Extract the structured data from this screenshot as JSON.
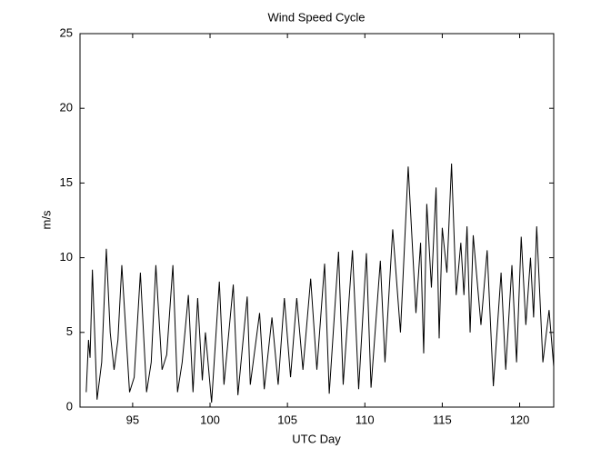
{
  "chart_data": {
    "type": "line",
    "title": "Wind Speed Cycle",
    "x_label": "UTC Day",
    "y_label": "m/s",
    "color": "#000000",
    "x": [
      92.0,
      92.15,
      92.25,
      92.4,
      92.7,
      93.0,
      93.3,
      93.55,
      93.8,
      94.05,
      94.3,
      94.8,
      95.1,
      95.5,
      95.9,
      96.2,
      96.5,
      96.9,
      97.2,
      97.6,
      97.9,
      98.2,
      98.6,
      98.9,
      99.2,
      99.5,
      99.7,
      100.1,
      100.6,
      100.9,
      101.5,
      101.8,
      102.4,
      102.6,
      103.2,
      103.5,
      104.0,
      104.4,
      104.8,
      105.2,
      105.6,
      106.0,
      106.5,
      106.9,
      107.4,
      107.7,
      108.3,
      108.6,
      109.2,
      109.6,
      110.1,
      110.4,
      111.0,
      111.3,
      111.8,
      112.3,
      112.8,
      113.3,
      113.6,
      113.8,
      114.0,
      114.3,
      114.6,
      114.8,
      115.0,
      115.3,
      115.6,
      115.9,
      116.2,
      116.4,
      116.6,
      116.8,
      117.0,
      117.5,
      117.9,
      118.3,
      118.8,
      119.1,
      119.5,
      119.8,
      120.1,
      120.4,
      120.7,
      120.9,
      121.1,
      121.5,
      121.9,
      122.2
    ],
    "values": [
      1.0,
      4.5,
      3.3,
      9.2,
      0.5,
      3.0,
      10.6,
      5.0,
      2.5,
      4.5,
      9.5,
      1.0,
      2.0,
      9.0,
      1.0,
      3.0,
      9.5,
      2.5,
      3.5,
      9.5,
      1.0,
      3.0,
      7.5,
      1.0,
      7.3,
      1.8,
      5.0,
      0.3,
      8.4,
      1.5,
      8.2,
      0.8,
      7.4,
      1.5,
      6.3,
      1.2,
      6.0,
      1.5,
      7.3,
      2.0,
      7.3,
      2.5,
      8.6,
      2.5,
      9.6,
      0.9,
      10.4,
      1.5,
      10.5,
      1.2,
      10.3,
      1.3,
      9.8,
      3.0,
      11.9,
      5.0,
      16.1,
      6.3,
      11.0,
      3.6,
      13.6,
      8.0,
      14.7,
      4.6,
      12.0,
      9.0,
      16.3,
      7.5,
      11.0,
      7.5,
      12.1,
      5.0,
      11.5,
      5.5,
      10.5,
      1.4,
      9.0,
      2.5,
      9.5,
      3.0,
      11.4,
      5.5,
      10.0,
      6.0,
      12.1,
      3.0,
      6.5,
      2.7
    ],
    "xlim": [
      91.6,
      122.2
    ],
    "ylim": [
      0,
      25
    ],
    "xticks": [
      95,
      100,
      105,
      110,
      115,
      120
    ],
    "yticks": [
      0,
      5,
      10,
      15,
      20,
      25
    ]
  }
}
